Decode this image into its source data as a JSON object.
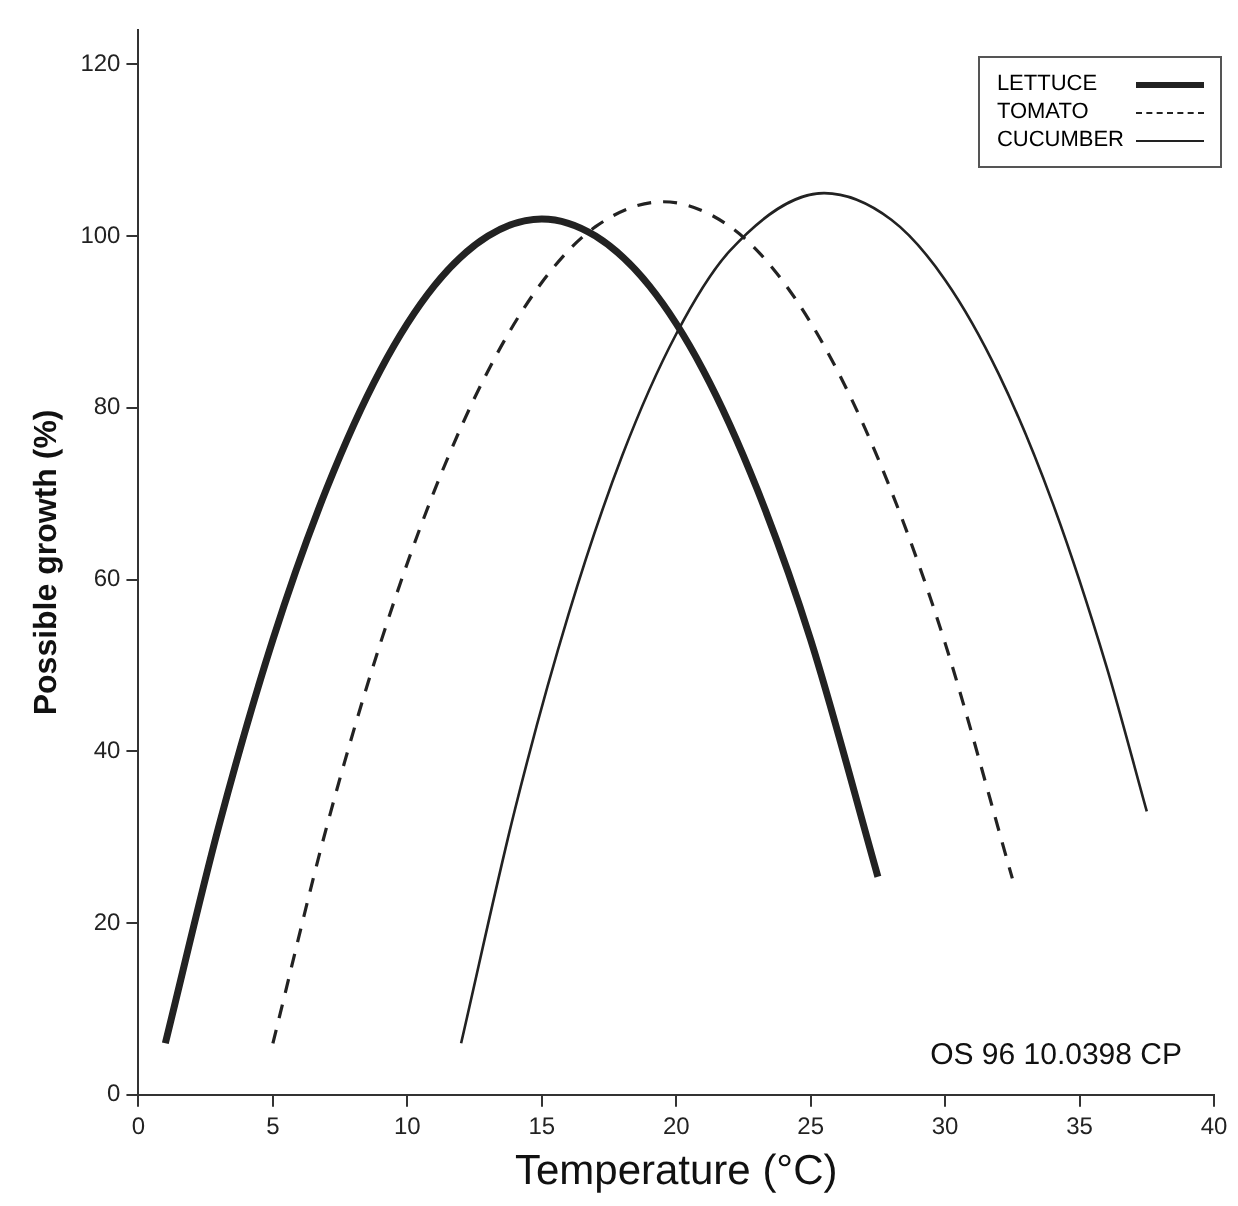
{
  "chart_data": {
    "type": "line",
    "xlabel": "Temperature (°C)",
    "ylabel": "Possible growth (%)",
    "xlim": [
      0,
      40
    ],
    "xticks": [
      0,
      5,
      10,
      15,
      20,
      25,
      30,
      35,
      40
    ],
    "ylim": [
      0,
      124
    ],
    "yticks": [
      0,
      20,
      40,
      60,
      80,
      100,
      120
    ],
    "grid": false,
    "legend": "top right",
    "marker": "none",
    "annotations": [
      "OS 96 10.0398 CP"
    ],
    "series": [
      {
        "name": "LETTUCE",
        "color": "#222222",
        "line_style": "solid",
        "x": [
          1,
          3,
          5,
          7,
          9,
          11,
          13,
          15,
          17,
          19,
          21,
          23,
          25,
          27.5
        ],
        "values": [
          6,
          31.4,
          53,
          70.6,
          84.4,
          94.2,
          100,
          102,
          100,
          94.2,
          84.4,
          70.6,
          53,
          25.4
        ]
      },
      {
        "name": "TOMATO",
        "color": "#222222",
        "line_style": "dashed",
        "x": [
          5,
          7,
          9,
          11,
          13,
          15,
          17,
          19.5,
          22,
          24,
          26,
          28,
          30,
          32.5
        ],
        "values": [
          6,
          31.2,
          52.6,
          70.3,
          84.3,
          94.6,
          101.1,
          104,
          101.1,
          94.6,
          84.3,
          70.3,
          52.6,
          25.2
        ]
      },
      {
        "name": "CUCUMBER",
        "color": "#222222",
        "line_style": "solid",
        "x": [
          12,
          14,
          16,
          18,
          20,
          22,
          25.5,
          28,
          30,
          32,
          34,
          36,
          37.5
        ],
        "values": [
          6,
          33.2,
          56,
          74.5,
          88.6,
          98.3,
          105,
          101.9,
          94.9,
          83.9,
          68.9,
          49.9,
          33
        ]
      }
    ]
  }
}
